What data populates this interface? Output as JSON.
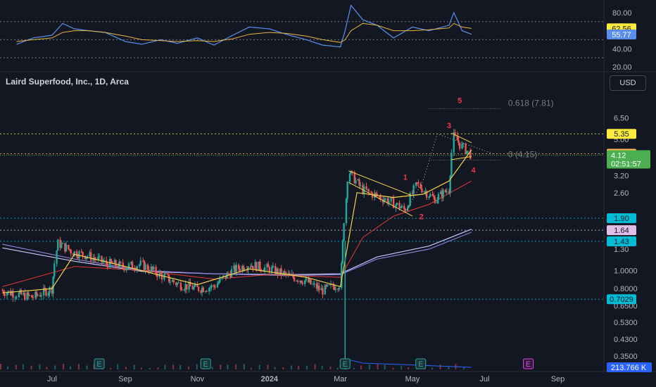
{
  "title": "Laird Superfood, Inc., 1D, Arca",
  "currency": "USD",
  "current_price": "4.12",
  "countdown": "02:51:57",
  "colors": {
    "background": "#131722",
    "up": "#26a69a",
    "down": "#ef5350",
    "rsi": "#5b8def",
    "rsi_ma": "#e5b53d",
    "ma_short": "#f2d24b",
    "ma_mid": "#e53935",
    "ma_long1": "#8c7bd4",
    "ma_long2": "#c5c8ff",
    "price_badge": "#4caf50",
    "level_cyan": "#00bcd4",
    "level_violet": "#e1bee7",
    "level_yellow": "#ffeb3b",
    "level_orange": "#ffb74d",
    "volume_blue": "#2962ff"
  },
  "chart_data": [
    {
      "type": "line",
      "name": "RSI panel",
      "y_ticks": [
        "80.00",
        "40.00",
        "20.00"
      ],
      "ylim": [
        20,
        90
      ],
      "bands": [
        70,
        50,
        30
      ],
      "badges": [
        {
          "value": "62.56",
          "numeric": 62.56,
          "kind": "rsi_ma"
        },
        {
          "value": "55.77",
          "numeric": 55.77,
          "kind": "rsi"
        }
      ],
      "x": [
        "2023-06-01",
        "2023-06-15",
        "2023-07-01",
        "2023-07-10",
        "2023-07-20",
        "2023-08-01",
        "2023-08-15",
        "2023-09-01",
        "2023-09-15",
        "2023-10-01",
        "2023-10-15",
        "2023-11-01",
        "2023-11-15",
        "2023-12-01",
        "2023-12-15",
        "2024-01-01",
        "2024-01-15",
        "2024-02-01",
        "2024-02-15",
        "2024-03-01",
        "2024-03-05",
        "2024-03-10",
        "2024-03-20",
        "2024-04-01",
        "2024-04-15",
        "2024-05-01",
        "2024-05-15",
        "2024-06-01",
        "2024-06-05",
        "2024-06-12",
        "2024-06-20"
      ],
      "series": [
        {
          "name": "",
          "values": [
            45,
            52,
            55,
            68,
            62,
            60,
            58,
            48,
            45,
            50,
            46,
            52,
            44,
            55,
            64,
            62,
            56,
            50,
            44,
            42,
            60,
            88,
            72,
            66,
            52,
            64,
            60,
            66,
            80,
            60,
            56
          ]
        },
        {
          "name": "",
          "values": [
            48,
            50,
            52,
            58,
            60,
            60,
            58,
            54,
            50,
            49,
            48,
            49,
            48,
            51,
            56,
            58,
            57,
            54,
            50,
            47,
            50,
            60,
            68,
            66,
            60,
            60,
            61,
            63,
            68,
            64,
            62.5
          ]
        }
      ]
    },
    {
      "type": "candlestick",
      "name": "Price panel",
      "scale": "log",
      "y_ticks": [
        "6.50",
        "5.00",
        "3.20",
        "2.60",
        "1.30",
        "1.0000",
        "0.8000",
        "0.6500",
        "0.5300",
        "0.4300",
        "0.3500"
      ],
      "x_ticks": [
        "Jul",
        "Sep",
        "Nov",
        "2024",
        "Mar",
        "May",
        "Jul",
        "Sep"
      ],
      "x_tick_dates": [
        "2023-07-01",
        "2023-09-01",
        "2023-11-01",
        "2024-01-01",
        "2024-03-01",
        "2024-05-01",
        "2024-07-01",
        "2024-09-01"
      ],
      "x_range": [
        "2023-05-18",
        "2024-10-10"
      ],
      "close_path": [
        [
          "2023-05-20",
          0.78
        ],
        [
          "2023-06-01",
          0.75
        ],
        [
          "2023-06-15",
          0.72
        ],
        [
          "2023-07-01",
          0.8
        ],
        [
          "2023-07-06",
          1.4
        ],
        [
          "2023-07-20",
          1.25
        ],
        [
          "2023-08-01",
          1.2
        ],
        [
          "2023-08-15",
          1.1
        ],
        [
          "2023-09-01",
          1.05
        ],
        [
          "2023-09-15",
          1.08
        ],
        [
          "2023-10-01",
          0.95
        ],
        [
          "2023-10-15",
          0.85
        ],
        [
          "2023-11-01",
          0.8
        ],
        [
          "2023-11-15",
          0.82
        ],
        [
          "2023-12-01",
          1.0
        ],
        [
          "2023-12-15",
          1.08
        ],
        [
          "2024-01-01",
          1.02
        ],
        [
          "2024-01-15",
          0.95
        ],
        [
          "2024-02-01",
          0.88
        ],
        [
          "2024-02-15",
          0.78
        ],
        [
          "2024-03-01",
          0.85
        ],
        [
          "2024-03-05",
          1.95
        ],
        [
          "2024-03-08",
          3.4
        ],
        [
          "2024-03-20",
          2.7
        ],
        [
          "2024-04-01",
          2.5
        ],
        [
          "2024-04-15",
          2.3
        ],
        [
          "2024-04-25",
          2.1
        ],
        [
          "2024-05-05",
          2.9
        ],
        [
          "2024-05-20",
          2.4
        ],
        [
          "2024-06-01",
          2.7
        ],
        [
          "2024-06-05",
          5.2
        ],
        [
          "2024-06-12",
          4.6
        ],
        [
          "2024-06-20",
          4.12
        ]
      ],
      "ma_short": [
        [
          "2023-05-20",
          0.76
        ],
        [
          "2023-07-01",
          0.8
        ],
        [
          "2023-07-20",
          1.22
        ],
        [
          "2023-09-01",
          1.05
        ],
        [
          "2023-11-01",
          0.84
        ],
        [
          "2023-12-15",
          1.02
        ],
        [
          "2024-02-01",
          0.92
        ],
        [
          "2024-03-01",
          0.82
        ],
        [
          "2024-03-15",
          2.6
        ],
        [
          "2024-04-15",
          2.45
        ],
        [
          "2024-05-10",
          2.55
        ],
        [
          "2024-06-01",
          3.0
        ],
        [
          "2024-06-20",
          4.4
        ]
      ],
      "ma_mid": [
        [
          "2023-05-20",
          0.82
        ],
        [
          "2023-07-20",
          1.05
        ],
        [
          "2023-09-15",
          1.0
        ],
        [
          "2023-11-15",
          0.9
        ],
        [
          "2024-01-01",
          0.95
        ],
        [
          "2024-03-01",
          0.92
        ],
        [
          "2024-03-20",
          1.5
        ],
        [
          "2024-04-15",
          1.95
        ],
        [
          "2024-05-15",
          2.25
        ],
        [
          "2024-06-20",
          3.0
        ]
      ],
      "ma_long1": [
        [
          "2023-05-20",
          1.38
        ],
        [
          "2023-07-20",
          1.15
        ],
        [
          "2023-09-15",
          1.0
        ],
        [
          "2023-11-15",
          0.96
        ],
        [
          "2024-01-15",
          0.94
        ],
        [
          "2024-03-01",
          0.95
        ],
        [
          "2024-04-01",
          1.15
        ],
        [
          "2024-05-15",
          1.3
        ],
        [
          "2024-06-20",
          1.6
        ]
      ],
      "ma_long2": [
        [
          "2023-05-20",
          1.32
        ],
        [
          "2023-07-20",
          1.12
        ],
        [
          "2023-09-15",
          0.99
        ],
        [
          "2023-11-15",
          0.96
        ],
        [
          "2024-01-15",
          0.95
        ],
        [
          "2024-03-01",
          0.96
        ],
        [
          "2024-04-01",
          1.18
        ],
        [
          "2024-05-15",
          1.35
        ],
        [
          "2024-06-20",
          1.66
        ]
      ],
      "volume_spike_date": "2024-03-05",
      "levels": [
        {
          "value": "5.35",
          "numeric": 5.35,
          "kind": "level_yellow"
        },
        {
          "value": "4.19",
          "numeric": 4.19,
          "kind": "level_orange"
        },
        {
          "value": "1.90",
          "numeric": 1.9,
          "kind": "level_cyan"
        },
        {
          "value": "1.64",
          "numeric": 1.64,
          "kind": "level_violet"
        },
        {
          "value": "1.43",
          "numeric": 1.43,
          "kind": "level_cyan"
        },
        {
          "value": "0.7029",
          "numeric": 0.7029,
          "kind": "level_cyan"
        }
      ],
      "fib_levels": [
        {
          "label": "0.618 (7.81)",
          "numeric": 7.81
        },
        {
          "label": "0 (4.15)",
          "numeric": 4.15
        }
      ],
      "wave_labels": [
        {
          "label": "1",
          "date": "2024-04-25",
          "numeric": 3.05
        },
        {
          "label": "2",
          "date": "2024-05-05",
          "numeric": 2.05
        },
        {
          "label": "3",
          "date": "2024-06-01",
          "numeric": 5.75
        },
        {
          "label": "4",
          "date": "2024-06-18",
          "numeric": 3.55
        },
        {
          "label": "5",
          "date": "2024-06-10",
          "numeric": 7.81
        }
      ],
      "earnings_dates": [
        "2023-08-10",
        "2023-11-08",
        "2024-03-05",
        "2024-05-08"
      ],
      "upcoming_earnings_date": "2024-08-07",
      "earnings_mark": "E",
      "volume_badge": "213.766 K"
    }
  ]
}
